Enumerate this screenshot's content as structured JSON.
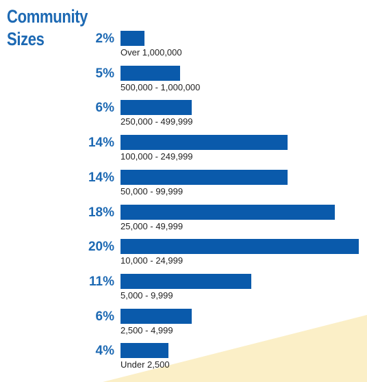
{
  "chart_data": {
    "type": "bar",
    "orientation": "horizontal",
    "title_lines": [
      "Community",
      "Sizes"
    ],
    "categories": [
      "Over 1,000,000",
      "500,000 - 1,000,000",
      "250,000 - 499,999",
      "100,000 - 249,999",
      "50,000 - 99,999",
      "25,000 - 49,999",
      "10,000 - 24,999",
      "5,000 - 9,999",
      "2,500 - 4,999",
      "Under 2,500"
    ],
    "values": [
      2,
      5,
      6,
      14,
      14,
      18,
      20,
      11,
      6,
      4
    ],
    "value_labels": [
      "2%",
      "5%",
      "6%",
      "14%",
      "14%",
      "18%",
      "20%",
      "11%",
      "6%",
      "4%"
    ],
    "xlim": [
      0,
      20
    ],
    "grid": false,
    "legend": "none"
  },
  "colors": {
    "bar": "#0a5aab",
    "title": "#1d69b3",
    "percent_label": "#1d69b3",
    "category_label": "#222222",
    "background_accent": "#fbefc7"
  }
}
